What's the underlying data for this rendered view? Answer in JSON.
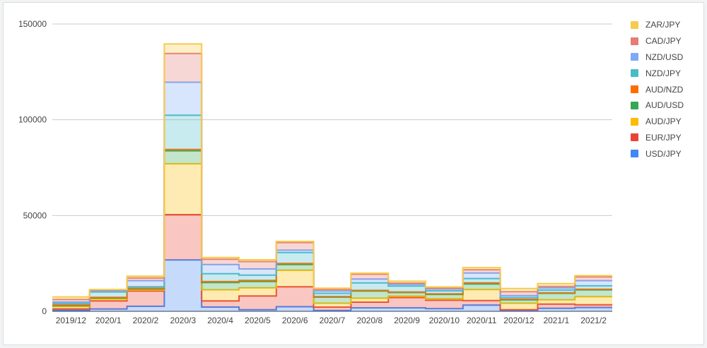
{
  "chart_data": {
    "type": "area",
    "stacked": true,
    "step": true,
    "categories": [
      "2019/12",
      "2020/1",
      "2020/2",
      "2020/3",
      "2020/4",
      "2020/5",
      "2020/6",
      "2020/7",
      "2020/8",
      "2020/9",
      "2020/10",
      "2020/11",
      "2020/12",
      "2021/1",
      "2021/2"
    ],
    "ylim": [
      0,
      150000
    ],
    "yticks": [
      0,
      50000,
      100000,
      150000
    ],
    "ytick_labels": [
      "0",
      "50000",
      "100000",
      "150000"
    ],
    "grid": true,
    "legend_position": "right",
    "series": [
      {
        "name": "USD/JPY",
        "color": "#4285f4",
        "values": [
          500,
          1200,
          2600,
          26800,
          2200,
          800,
          2400,
          400,
          1800,
          1800,
          1400,
          3200,
          400,
          1600,
          2000
        ]
      },
      {
        "name": "EUR/JPY",
        "color": "#ea4335",
        "values": [
          800,
          4200,
          8000,
          23700,
          3200,
          7200,
          10400,
          1800,
          3000,
          5400,
          4400,
          2400,
          400,
          2200,
          1400
        ]
      },
      {
        "name": "AUD/JPY",
        "color": "#fbbc04",
        "values": [
          1200,
          1000,
          500,
          26500,
          5800,
          4200,
          8600,
          2000,
          2000,
          700,
          700,
          5700,
          3400,
          2200,
          4200
        ]
      },
      {
        "name": "AUD/USD",
        "color": "#34a853",
        "values": [
          500,
          600,
          600,
          6800,
          3800,
          3400,
          3000,
          3200,
          3800,
          1900,
          2300,
          3000,
          1800,
          3400,
          3600
        ]
      },
      {
        "name": "AUD/NZD",
        "color": "#ff6d01",
        "values": [
          300,
          300,
          300,
          700,
          500,
          500,
          600,
          300,
          300,
          300,
          300,
          500,
          300,
          300,
          300
        ]
      },
      {
        "name": "NZD/JPY",
        "color": "#46bdc6",
        "values": [
          800,
          2800,
          800,
          17900,
          4100,
          2800,
          5700,
          1700,
          3900,
          3100,
          1600,
          2300,
          900,
          1400,
          1800
        ]
      },
      {
        "name": "NZD/USD",
        "color": "#7baaf7",
        "values": [
          700,
          700,
          3200,
          17200,
          4800,
          3200,
          1200,
          1200,
          2000,
          900,
          900,
          2900,
          1000,
          1100,
          2700
        ]
      },
      {
        "name": "CAD/JPY",
        "color": "#e67c73",
        "values": [
          1400,
          300,
          1400,
          15000,
          2800,
          3900,
          4000,
          800,
          2600,
          600,
          400,
          1700,
          2000,
          800,
          2000
        ]
      },
      {
        "name": "ZAR/JPY",
        "color": "#f7cb4d",
        "values": [
          1300,
          300,
          900,
          5000,
          900,
          900,
          600,
          700,
          500,
          1000,
          700,
          1100,
          1700,
          1500,
          600
        ]
      }
    ]
  }
}
